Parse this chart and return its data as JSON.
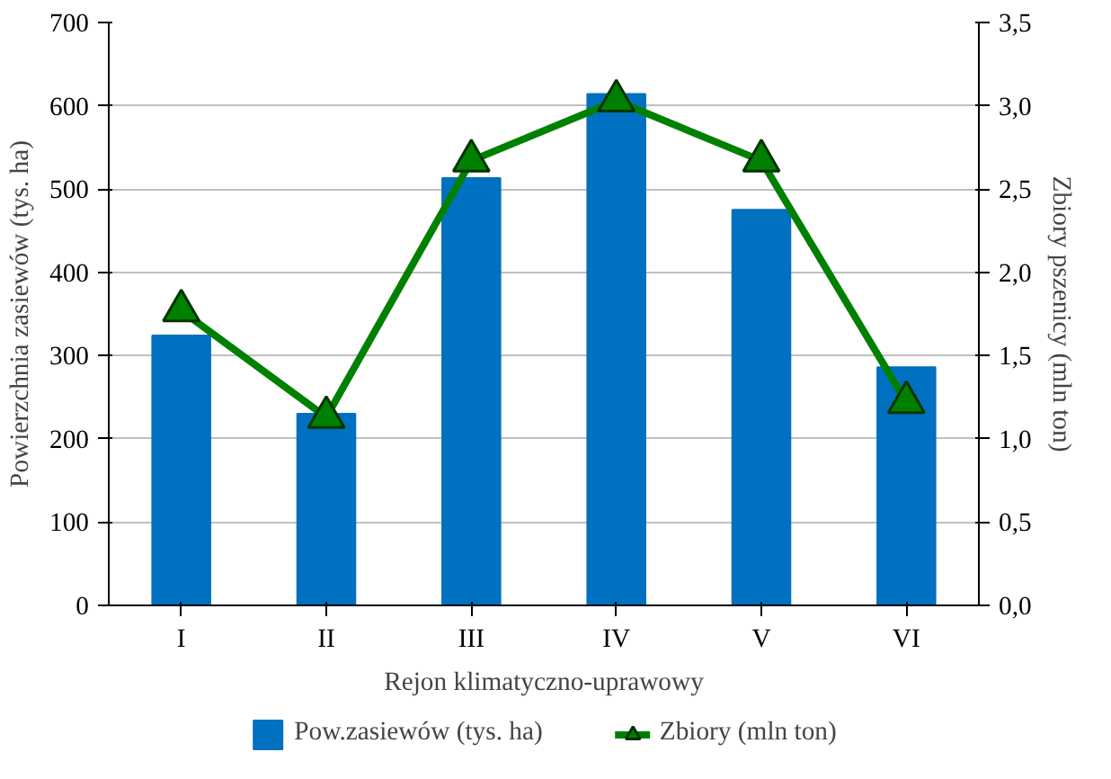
{
  "chart_data": {
    "type": "bar",
    "xlabel": "Rejon klimatyczno-uprawowy",
    "ylabel": "Powierzchnia zasiewów (tys. ha)",
    "y2label": "Zbiory pszenicy (mln ton)",
    "categories": [
      "I",
      "II",
      "III",
      "IV",
      "V",
      "VI"
    ],
    "series": [
      {
        "name": "Pow.zasiewów (tys. ha)",
        "color": "#0070c0",
        "values": [
          324,
          230,
          513,
          614,
          475,
          286
        ]
      },
      {
        "name": "Zbiory (mln ton)",
        "type": "line",
        "axis": "y2",
        "color": "#008000",
        "marker": "triangle",
        "values": [
          1.77,
          1.13,
          2.67,
          3.03,
          2.67,
          1.22
        ]
      }
    ],
    "ylim": [
      0,
      700
    ],
    "yticks": [
      0,
      100,
      200,
      300,
      400,
      500,
      600,
      700
    ],
    "y2lim": [
      0,
      3.5
    ],
    "y2ticks": [
      {
        "value": 0,
        "label": "0,0"
      },
      {
        "value": 0.5,
        "label": "0,5"
      },
      {
        "value": 1,
        "label": "1,0"
      },
      {
        "value": 1.5,
        "label": "1,5"
      },
      {
        "value": 2,
        "label": "2,0"
      },
      {
        "value": 2.5,
        "label": "2,5"
      },
      {
        "value": 3,
        "label": "3,0"
      },
      {
        "value": 3.5,
        "label": "3,5"
      }
    ],
    "grid": "y",
    "legend": "bottom"
  }
}
